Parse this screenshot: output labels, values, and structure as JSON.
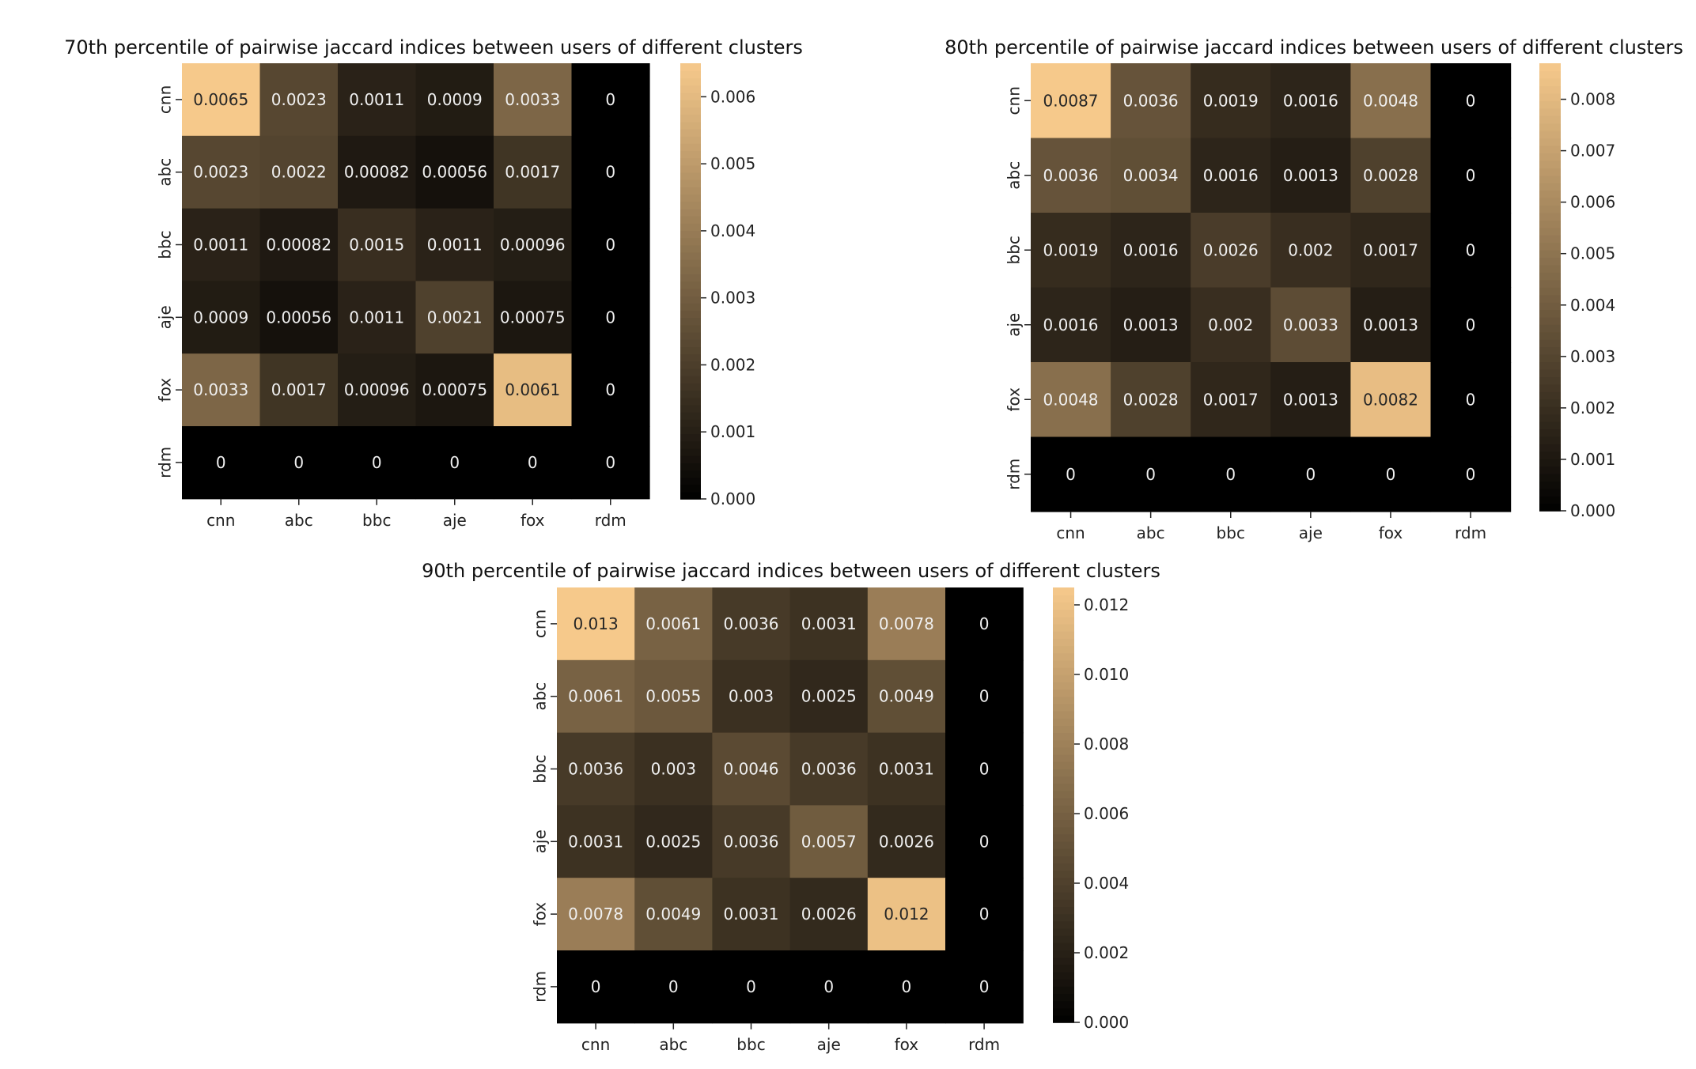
{
  "chart_data": [
    {
      "type": "heatmap",
      "title": "70th percentile of pairwise jaccard indices between users of different clusters",
      "x_labels": [
        "cnn",
        "abc",
        "bbc",
        "aje",
        "fox",
        "rdm"
      ],
      "y_labels": [
        "cnn",
        "abc",
        "bbc",
        "aje",
        "fox",
        "rdm"
      ],
      "values": [
        [
          0.0065,
          0.0023,
          0.0011,
          0.0009,
          0.0033,
          0
        ],
        [
          0.0023,
          0.0022,
          0.00082,
          0.00056,
          0.0017,
          0
        ],
        [
          0.0011,
          0.00082,
          0.0015,
          0.0011,
          0.00096,
          0
        ],
        [
          0.0009,
          0.00056,
          0.0011,
          0.0021,
          0.00075,
          0
        ],
        [
          0.0033,
          0.0017,
          0.00096,
          0.00075,
          0.0061,
          0
        ],
        [
          0,
          0,
          0,
          0,
          0,
          0
        ]
      ],
      "annotations": [
        [
          "0.0065",
          "0.0023",
          "0.0011",
          "0.0009",
          "0.0033",
          "0"
        ],
        [
          "0.0023",
          "0.0022",
          "0.00082",
          "0.00056",
          "0.0017",
          "0"
        ],
        [
          "0.0011",
          "0.00082",
          "0.0015",
          "0.0011",
          "0.00096",
          "0"
        ],
        [
          "0.0009",
          "0.00056",
          "0.0011",
          "0.0021",
          "0.00075",
          "0"
        ],
        [
          "0.0033",
          "0.0017",
          "0.00096",
          "0.00075",
          "0.0061",
          "0"
        ],
        [
          "0",
          "0",
          "0",
          "0",
          "0",
          "0"
        ]
      ],
      "colorbar": {
        "range": [
          0,
          0.0065
        ],
        "ticks": [
          0,
          0.001,
          0.002,
          0.003,
          0.004,
          0.005,
          0.006
        ],
        "tick_labels": [
          "0.000",
          "0.001",
          "0.002",
          "0.003",
          "0.004",
          "0.005",
          "0.006"
        ]
      }
    },
    {
      "type": "heatmap",
      "title": "80th percentile of pairwise jaccard indices between users of different clusters",
      "x_labels": [
        "cnn",
        "abc",
        "bbc",
        "aje",
        "fox",
        "rdm"
      ],
      "y_labels": [
        "cnn",
        "abc",
        "bbc",
        "aje",
        "fox",
        "rdm"
      ],
      "values": [
        [
          0.0087,
          0.0036,
          0.0019,
          0.0016,
          0.0048,
          0
        ],
        [
          0.0036,
          0.0034,
          0.0016,
          0.0013,
          0.0028,
          0
        ],
        [
          0.0019,
          0.0016,
          0.0026,
          0.002,
          0.0017,
          0
        ],
        [
          0.0016,
          0.0013,
          0.002,
          0.0033,
          0.0013,
          0
        ],
        [
          0.0048,
          0.0028,
          0.0017,
          0.0013,
          0.0082,
          0
        ],
        [
          0,
          0,
          0,
          0,
          0,
          0
        ]
      ],
      "annotations": [
        [
          "0.0087",
          "0.0036",
          "0.0019",
          "0.0016",
          "0.0048",
          "0"
        ],
        [
          "0.0036",
          "0.0034",
          "0.0016",
          "0.0013",
          "0.0028",
          "0"
        ],
        [
          "0.0019",
          "0.0016",
          "0.0026",
          "0.002",
          "0.0017",
          "0"
        ],
        [
          "0.0016",
          "0.0013",
          "0.002",
          "0.0033",
          "0.0013",
          "0"
        ],
        [
          "0.0048",
          "0.0028",
          "0.0017",
          "0.0013",
          "0.0082",
          "0"
        ],
        [
          "0",
          "0",
          "0",
          "0",
          "0",
          "0"
        ]
      ],
      "colorbar": {
        "range": [
          0,
          0.0087
        ],
        "ticks": [
          0,
          0.001,
          0.002,
          0.003,
          0.004,
          0.005,
          0.006,
          0.007,
          0.008
        ],
        "tick_labels": [
          "0.000",
          "0.001",
          "0.002",
          "0.003",
          "0.004",
          "0.005",
          "0.006",
          "0.007",
          "0.008"
        ]
      }
    },
    {
      "type": "heatmap",
      "title": "90th percentile of pairwise jaccard indices between users of different clusters",
      "x_labels": [
        "cnn",
        "abc",
        "bbc",
        "aje",
        "fox",
        "rdm"
      ],
      "y_labels": [
        "cnn",
        "abc",
        "bbc",
        "aje",
        "fox",
        "rdm"
      ],
      "values": [
        [
          0.013,
          0.0061,
          0.0036,
          0.0031,
          0.0078,
          0
        ],
        [
          0.0061,
          0.0055,
          0.003,
          0.0025,
          0.0049,
          0
        ],
        [
          0.0036,
          0.003,
          0.0046,
          0.0036,
          0.0031,
          0
        ],
        [
          0.0031,
          0.0025,
          0.0036,
          0.0057,
          0.0026,
          0
        ],
        [
          0.0078,
          0.0049,
          0.0031,
          0.0026,
          0.012,
          0
        ],
        [
          0,
          0,
          0,
          0,
          0,
          0
        ]
      ],
      "annotations": [
        [
          "0.013",
          "0.0061",
          "0.0036",
          "0.0031",
          "0.0078",
          "0"
        ],
        [
          "0.0061",
          "0.0055",
          "0.003",
          "0.0025",
          "0.0049",
          "0"
        ],
        [
          "0.0036",
          "0.003",
          "0.0046",
          "0.0036",
          "0.0031",
          "0"
        ],
        [
          "0.0031",
          "0.0025",
          "0.0036",
          "0.0057",
          "0.0026",
          "0"
        ],
        [
          "0.0078",
          "0.0049",
          "0.0031",
          "0.0026",
          "0.012",
          "0"
        ],
        [
          "0",
          "0",
          "0",
          "0",
          "0",
          "0"
        ]
      ],
      "colorbar": {
        "range": [
          0,
          0.0125
        ],
        "ticks": [
          0,
          0.002,
          0.004,
          0.006,
          0.008,
          0.01,
          0.012
        ],
        "tick_labels": [
          "0.000",
          "0.002",
          "0.004",
          "0.006",
          "0.008",
          "0.010",
          "0.012"
        ]
      }
    }
  ],
  "colormap": {
    "name": "copper",
    "stops": [
      "#000000",
      "#f6c98b"
    ]
  }
}
